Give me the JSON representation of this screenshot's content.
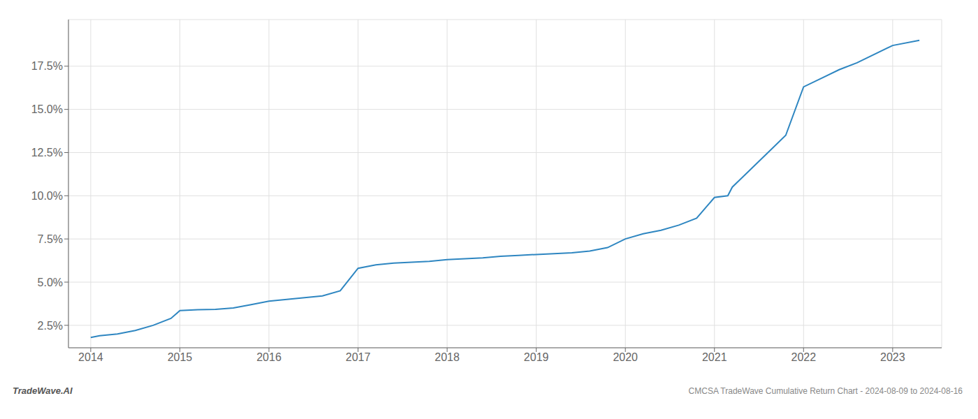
{
  "chart_data": {
    "type": "line",
    "x": [
      2014.0,
      2014.1,
      2014.3,
      2014.5,
      2014.7,
      2014.9,
      2015.0,
      2015.2,
      2015.4,
      2015.6,
      2015.8,
      2016.0,
      2016.2,
      2016.4,
      2016.6,
      2016.8,
      2017.0,
      2017.2,
      2017.4,
      2017.6,
      2017.8,
      2018.0,
      2018.2,
      2018.4,
      2018.6,
      2018.8,
      2019.0,
      2019.2,
      2019.4,
      2019.6,
      2019.8,
      2020.0,
      2020.2,
      2020.4,
      2020.6,
      2020.8,
      2021.0,
      2021.15,
      2021.2,
      2021.4,
      2021.6,
      2021.8,
      2022.0,
      2022.2,
      2022.4,
      2022.6,
      2023.0,
      2023.3
    ],
    "values": [
      1.8,
      1.9,
      2.0,
      2.2,
      2.5,
      2.9,
      3.35,
      3.4,
      3.42,
      3.5,
      3.7,
      3.9,
      4.0,
      4.1,
      4.2,
      4.5,
      5.8,
      6.0,
      6.1,
      6.15,
      6.2,
      6.3,
      6.35,
      6.4,
      6.5,
      6.55,
      6.6,
      6.65,
      6.7,
      6.8,
      7.0,
      7.5,
      7.8,
      8.0,
      8.3,
      8.7,
      9.9,
      10.0,
      10.5,
      11.5,
      12.5,
      13.5,
      16.3,
      16.8,
      17.3,
      17.7,
      18.7,
      19.0
    ],
    "color": "#2e86c1",
    "xlim": [
      2013.75,
      2023.55
    ],
    "ylim": [
      1.2,
      20.2
    ],
    "xticks": [
      2014,
      2015,
      2016,
      2017,
      2018,
      2019,
      2020,
      2021,
      2022,
      2023
    ],
    "yticks": [
      {
        "value": 2.5,
        "label": "2.5%"
      },
      {
        "value": 5.0,
        "label": "5.0%"
      },
      {
        "value": 7.5,
        "label": "7.5%"
      },
      {
        "value": 10.0,
        "label": "10.0%"
      },
      {
        "value": 12.5,
        "label": "12.5%"
      },
      {
        "value": 15.0,
        "label": "15.0%"
      },
      {
        "value": 17.5,
        "label": "17.5%"
      }
    ],
    "grid": true,
    "annotations": [
      "TradeWave.AI",
      "CMCSA TradeWave Cumulative Return Chart - 2024-08-09 to 2024-08-16"
    ]
  }
}
